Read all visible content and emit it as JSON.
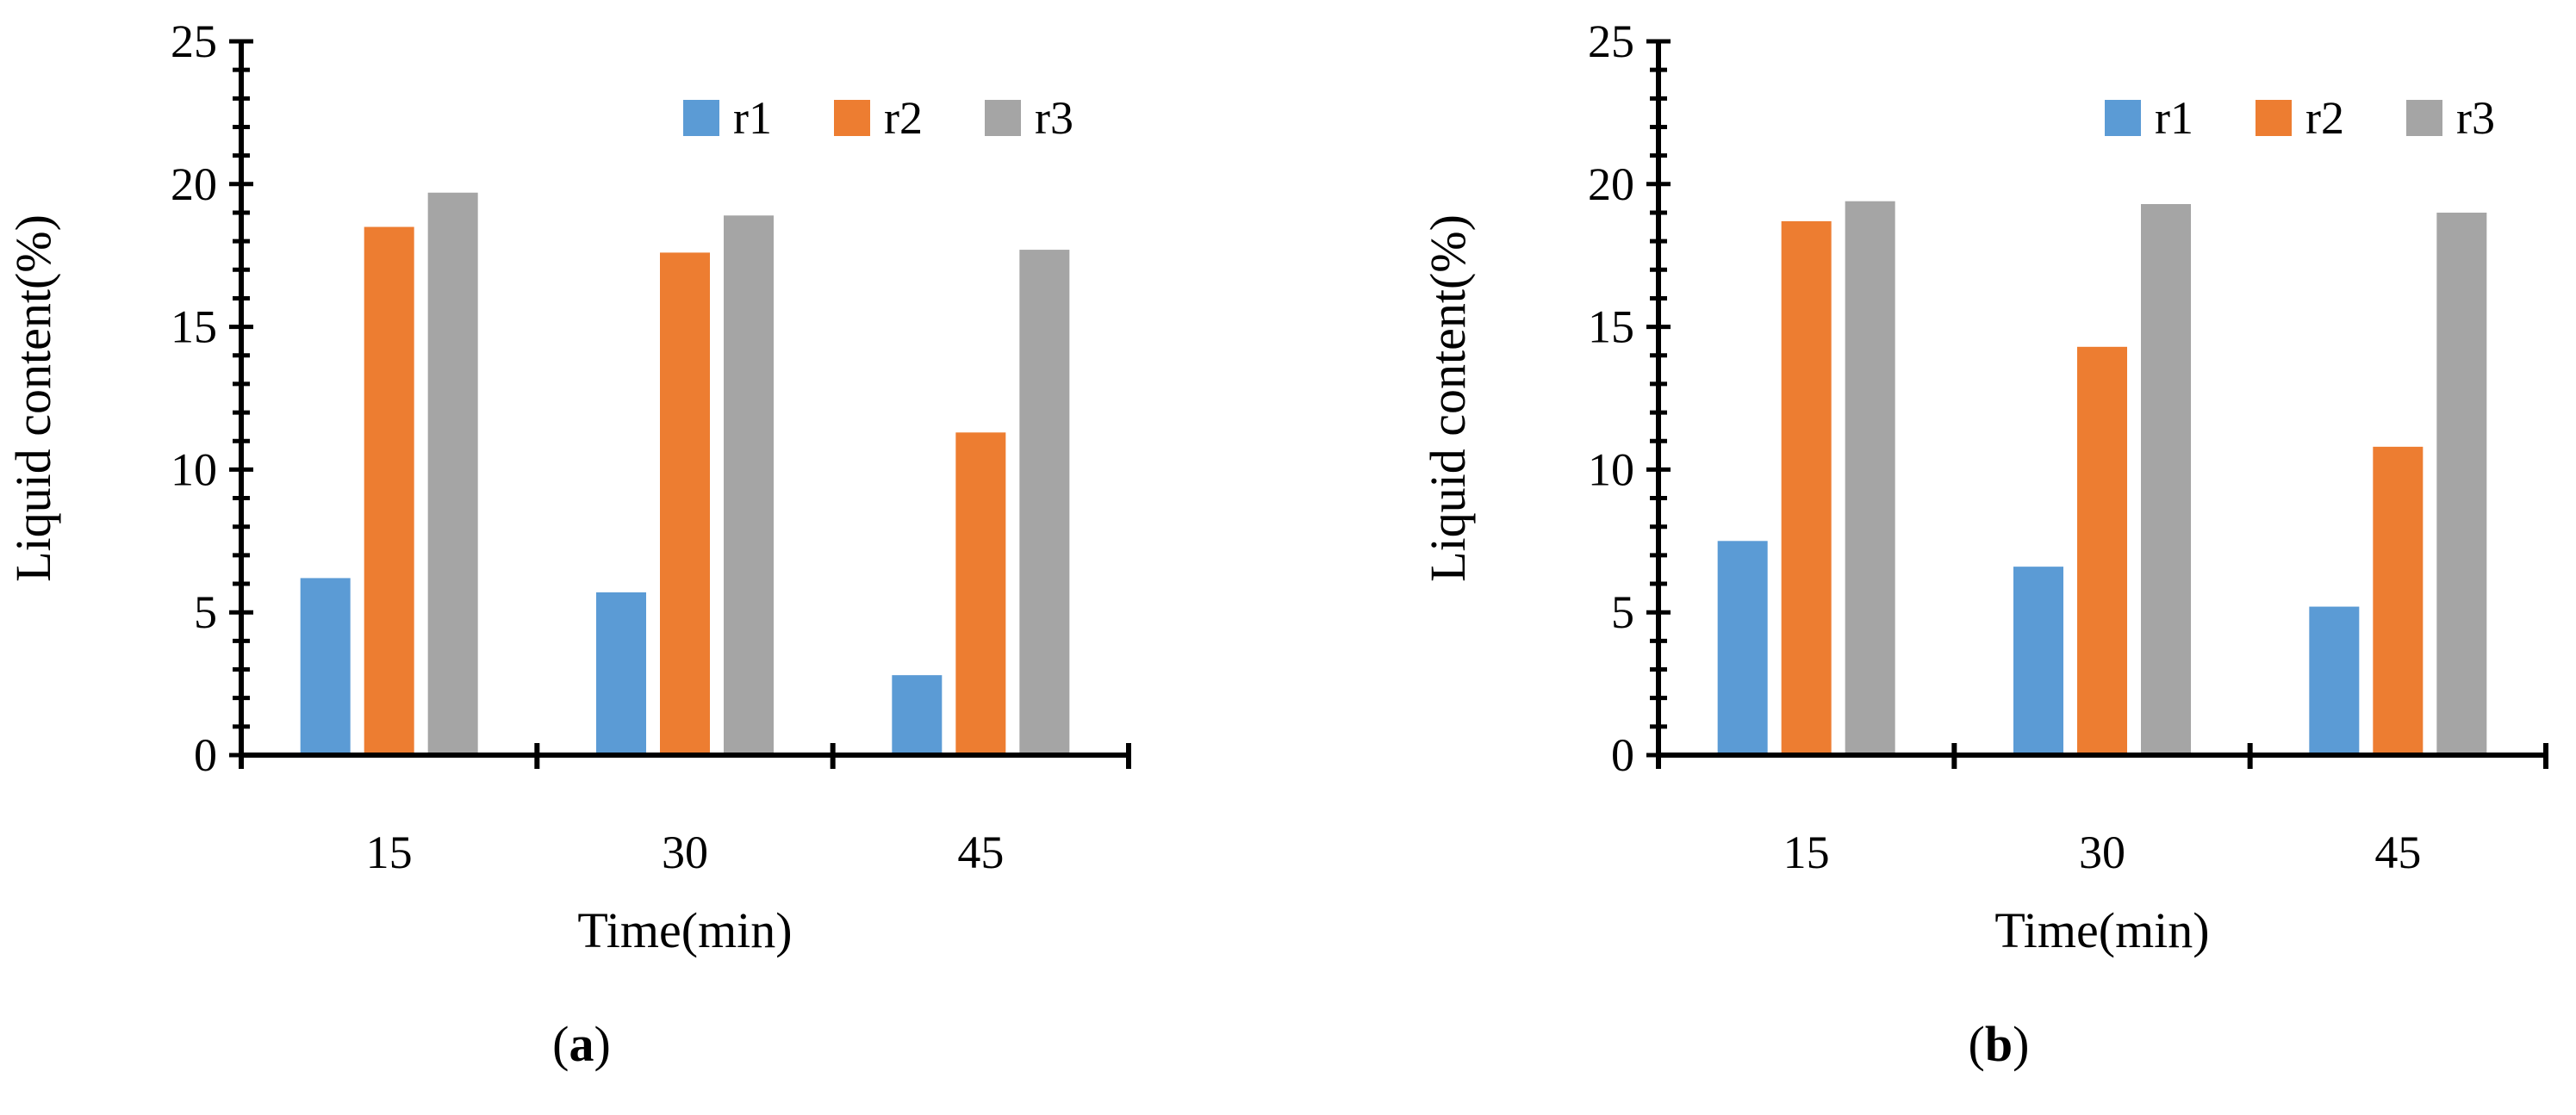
{
  "chart_data": [
    {
      "type": "bar",
      "caption_open": "(",
      "caption_letter": "a",
      "caption_close": ")",
      "categories": [
        "15",
        "30",
        "45"
      ],
      "series": [
        {
          "name": "r1",
          "color": "#5b9bd5",
          "values": [
            6.2,
            5.7,
            2.8
          ]
        },
        {
          "name": "r2",
          "color": "#ed7d31",
          "values": [
            18.5,
            17.6,
            11.3
          ]
        },
        {
          "name": "r3",
          "color": "#a5a5a5",
          "values": [
            19.7,
            18.9,
            17.7
          ]
        }
      ],
      "xlabel": "Time(min)",
      "ylabel": "Liquid content(%)",
      "ylim": [
        0,
        25
      ],
      "yticks": [
        0,
        5,
        10,
        15,
        20,
        25
      ],
      "grid": false,
      "legend_position": "top-right"
    },
    {
      "type": "bar",
      "caption_open": "(",
      "caption_letter": "b",
      "caption_close": ")",
      "categories": [
        "15",
        "30",
        "45"
      ],
      "series": [
        {
          "name": "r1",
          "color": "#5b9bd5",
          "values": [
            7.5,
            6.6,
            5.2
          ]
        },
        {
          "name": "r2",
          "color": "#ed7d31",
          "values": [
            18.7,
            14.3,
            10.8
          ]
        },
        {
          "name": "r3",
          "color": "#a5a5a5",
          "values": [
            19.4,
            19.3,
            19.0
          ]
        }
      ],
      "xlabel": "Time(min)",
      "ylabel": "Liquid content(%)",
      "ylim": [
        0,
        25
      ],
      "yticks": [
        0,
        5,
        10,
        15,
        20,
        25
      ],
      "grid": false,
      "legend_position": "top-right"
    }
  ]
}
